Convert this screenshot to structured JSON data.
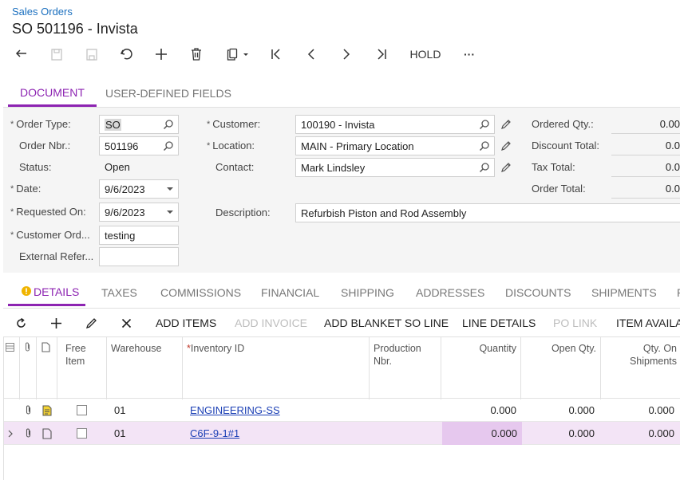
{
  "header": {
    "breadcrumb": "Sales Orders",
    "title": "SO 501196 - Invista"
  },
  "toolbar": {
    "hold_label": "HOLD",
    "more_label": "···"
  },
  "tabs_top": [
    "DOCUMENT",
    "USER-DEFINED FIELDS"
  ],
  "form": {
    "order_type_label": "Order Type:",
    "order_type_value": "SO",
    "order_nbr_label": "Order Nbr.:",
    "order_nbr_value": "501196",
    "status_label": "Status:",
    "status_value": "Open",
    "date_label": "Date:",
    "date_value": "9/6/2023",
    "requested_on_label": "Requested On:",
    "requested_on_value": "9/6/2023",
    "customer_ord_label": "Customer Ord...",
    "customer_ord_value": "testing",
    "external_ref_label": "External Refer...",
    "external_ref_value": "",
    "customer_label": "Customer:",
    "customer_value": "100190 - Invista",
    "location_label": "Location:",
    "location_value": "MAIN - Primary Location",
    "contact_label": "Contact:",
    "contact_value": "Mark Lindsley",
    "description_label": "Description:",
    "description_value": "Refurbish Piston and Rod Assembly"
  },
  "summary": {
    "ordered_qty_label": "Ordered Qty.:",
    "ordered_qty_value": "0.00",
    "discount_total_label": "Discount Total:",
    "discount_total_value": "0.0",
    "tax_total_label": "Tax Total:",
    "tax_total_value": "0.0",
    "order_total_label": "Order Total:",
    "order_total_value": "0.0"
  },
  "tabs_detail": [
    "DETAILS",
    "TAXES",
    "COMMISSIONS",
    "FINANCIAL",
    "SHIPPING",
    "ADDRESSES",
    "DISCOUNTS",
    "SHIPMENTS",
    "P"
  ],
  "grid_toolbar": {
    "add_items": "ADD ITEMS",
    "add_invoice": "ADD INVOICE",
    "add_blanket": "ADD BLANKET SO LINE",
    "line_details": "LINE DETAILS",
    "po_link": "PO LINK",
    "item_available": "ITEM AVAILAB"
  },
  "grid": {
    "columns": {
      "free_item": "Free\nItem",
      "warehouse": "Warehouse",
      "inventory_id": "Inventory ID",
      "production_nbr": "Production\nNbr.",
      "quantity": "Quantity",
      "open_qty": "Open Qty.",
      "qty_on_shipments": "Qty. On\nShipments"
    },
    "rows": [
      {
        "warehouse": "01",
        "inventory_id": "ENGINEERING-SS",
        "production_nbr": "",
        "quantity": "0.000",
        "open_qty": "0.000",
        "qty_on_shipments": "0.000"
      },
      {
        "warehouse": "01",
        "inventory_id": "C6F-9-1#1",
        "production_nbr": "",
        "quantity": "0.000",
        "open_qty": "0.000",
        "qty_on_shipments": "0.000"
      }
    ]
  },
  "colors": {
    "accent": "#8d24b2",
    "link": "#1b3fb5",
    "warning": "#f0b400"
  }
}
